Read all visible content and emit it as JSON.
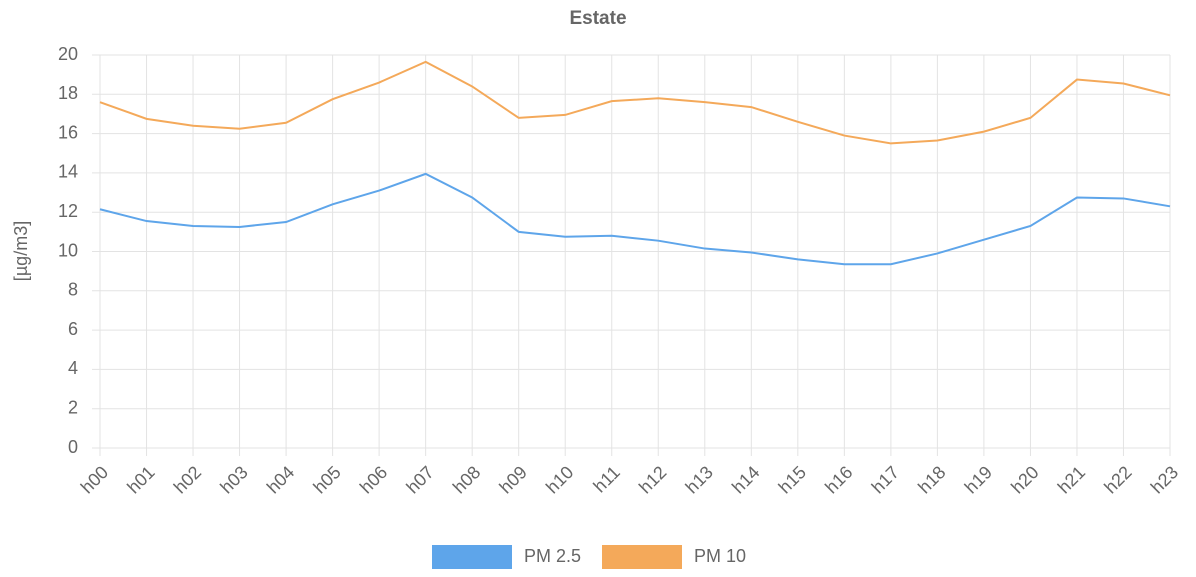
{
  "chart_data": {
    "type": "line",
    "title": "Estate",
    "y_label": "[µg/m3]",
    "categories": [
      "h00",
      "h01",
      "h02",
      "h03",
      "h04",
      "h05",
      "h06",
      "h07",
      "h08",
      "h09",
      "h10",
      "h11",
      "h12",
      "h13",
      "h14",
      "h15",
      "h16",
      "h17",
      "h18",
      "h19",
      "h20",
      "h21",
      "h22",
      "h23"
    ],
    "series": [
      {
        "name": "PM 2.5",
        "color": "#5ea5ea",
        "values": [
          12.15,
          11.55,
          11.3,
          11.25,
          11.5,
          12.4,
          13.1,
          13.95,
          12.75,
          11.0,
          10.75,
          10.8,
          10.55,
          10.15,
          9.95,
          9.6,
          9.35,
          9.35,
          9.9,
          10.6,
          11.3,
          12.75,
          12.7,
          12.3
        ]
      },
      {
        "name": "PM 10",
        "color": "#f4a95a",
        "values": [
          17.6,
          16.75,
          16.4,
          16.25,
          16.55,
          17.75,
          18.6,
          19.65,
          18.4,
          16.8,
          16.95,
          17.65,
          17.8,
          17.6,
          17.35,
          16.6,
          15.9,
          15.5,
          15.65,
          16.1,
          16.8,
          18.75,
          18.55,
          17.95
        ]
      }
    ],
    "ylim": [
      0,
      20
    ],
    "yticks": [
      0,
      2,
      4,
      6,
      8,
      10,
      12,
      14,
      16,
      18,
      20
    ],
    "grid": true,
    "legend": "bottom"
  }
}
